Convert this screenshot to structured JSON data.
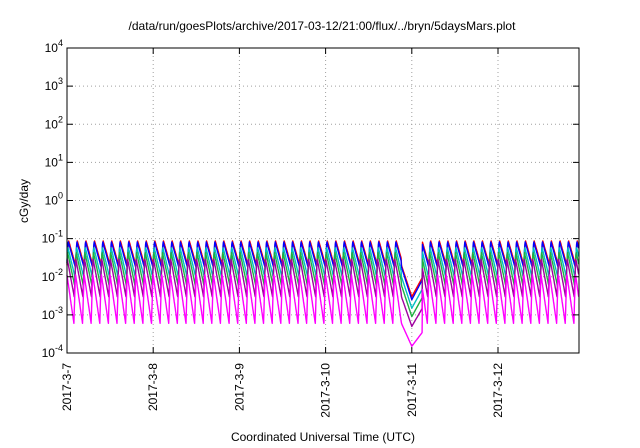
{
  "chart_data": {
    "type": "line",
    "title": "/data/run/goesPlots/archive/2017-03-12/21:00/flux/../bryn/5daysMars.plot",
    "xlabel": "Coordinated Universal Time (UTC)",
    "ylabel": "cGy/day",
    "yscale": "log",
    "ylim": [
      0.0001,
      10000
    ],
    "y_ticks": [
      {
        "base": "10",
        "exp": "4"
      },
      {
        "base": "10",
        "exp": "3"
      },
      {
        "base": "10",
        "exp": "2"
      },
      {
        "base": "10",
        "exp": "1"
      },
      {
        "base": "10",
        "exp": "0"
      },
      {
        "base": "10",
        "exp": "-1"
      },
      {
        "base": "10",
        "exp": "-2"
      },
      {
        "base": "10",
        "exp": "-3"
      },
      {
        "base": "10",
        "exp": "-4"
      }
    ],
    "x_ticks": [
      "2017-3-7",
      "2017-3-8",
      "2017-3-9",
      "2017-3-10",
      "2017-3-11",
      "2017-3-12"
    ],
    "xlim_days": [
      0,
      5.95
    ],
    "grid": true,
    "pattern": {
      "cycles_per_day": 10,
      "dip_day": 4.0,
      "dip_end_day": 4.12
    },
    "series": [
      {
        "color": "#ff0000",
        "peak": 0.09,
        "trough": 0.02,
        "dip_min": 0.003
      },
      {
        "color": "#0000ff",
        "peak": 0.085,
        "trough": 0.018,
        "dip_min": 0.0025
      },
      {
        "color": "#00c0c0",
        "peak": 0.06,
        "trough": 0.01,
        "dip_min": 0.0015
      },
      {
        "color": "#20b040",
        "peak": 0.045,
        "trough": 0.006,
        "dip_min": 0.0009
      },
      {
        "color": "#a000a0",
        "peak": 0.03,
        "trough": 0.003,
        "dip_min": 0.0005
      },
      {
        "color": "#ff00ff",
        "peak": 0.012,
        "trough": 0.0006,
        "dip_min": 0.00015
      }
    ]
  }
}
